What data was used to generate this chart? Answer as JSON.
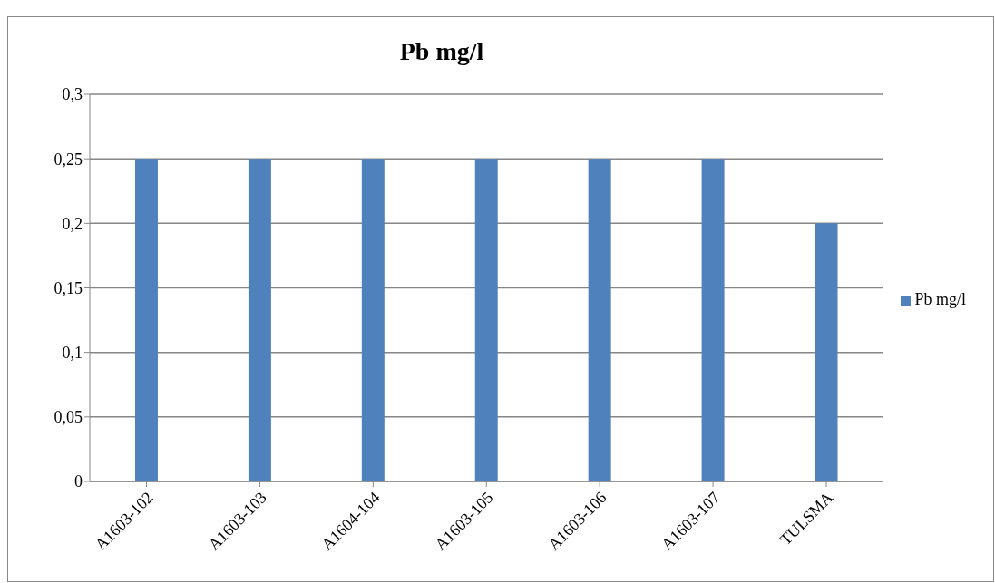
{
  "chart_data": {
    "type": "bar",
    "title": "Pb mg/l",
    "categories": [
      "A1603-102",
      "A1603-103",
      "A1604-104",
      "A1603-105",
      "A1603-106",
      "A1603-107",
      "TULSMA"
    ],
    "series": [
      {
        "name": "Pb mg/l",
        "color": "#4f81bd",
        "values": [
          0.25,
          0.25,
          0.25,
          0.25,
          0.25,
          0.25,
          0.2
        ]
      }
    ],
    "ylim": [
      0,
      0.3
    ],
    "yticks": [
      0,
      {
        "value": 0.05,
        "label": "0,05"
      },
      {
        "value": 0.1,
        "label": "0,1"
      },
      {
        "value": 0.15,
        "label": "0,15"
      },
      {
        "value": 0.2,
        "label": "0,2"
      },
      {
        "value": 0.25,
        "label": "0,25"
      },
      {
        "value": 0.3,
        "label": "0,3"
      }
    ],
    "grid": "y",
    "legend": "right"
  }
}
